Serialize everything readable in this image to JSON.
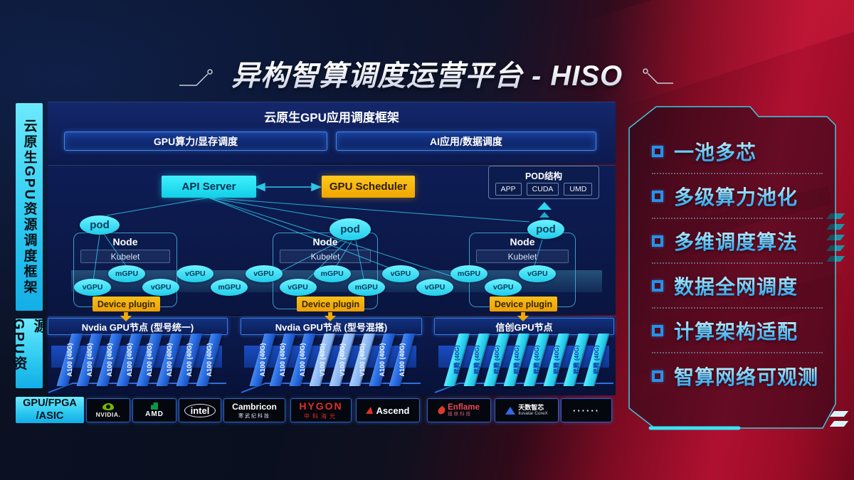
{
  "page": {
    "title": "异构智算调度运营平台 - HISO"
  },
  "sidebar": {
    "scheduling_label": "云原生GPU资源调度框架",
    "resource_label": "GPU资源",
    "hardware_label": "GPU/FPGA\n/ASIC"
  },
  "framework": {
    "title": "云原生GPU应用调度框架",
    "compute_bar": "GPU算力/显存调度",
    "ai_bar": "AI应用/数据调度"
  },
  "cluster": {
    "api_server": "API Server",
    "gpu_scheduler": "GPU Scheduler",
    "pod_struct": {
      "title": "POD结构",
      "items": [
        "APP",
        "CUDA",
        "UMD"
      ]
    },
    "pod_label": "pod",
    "node_label": "Node",
    "kubelet_label": "Kubelet",
    "device_plugin_label": "Device plugin",
    "band": [
      "vGPU",
      "mGPU",
      "vGPU",
      "vGPU",
      "mGPU",
      "vGPU",
      "vGPU",
      "mGPU",
      "mGPU",
      "vGPU",
      "vGPU",
      "mGPU",
      "vGPU",
      "vGPU"
    ]
  },
  "gpu_groups": [
    {
      "title": "Nvdia GPU节点 (型号统一)",
      "cards": [
        {
          "label": "A100 (40G)",
          "type": "a100"
        },
        {
          "label": "A100 (40G)",
          "type": "a100"
        },
        {
          "label": "A100 (40G)",
          "type": "a100"
        },
        {
          "label": "A100 (40G)",
          "type": "a100"
        },
        {
          "label": "A100 (40G)",
          "type": "a100"
        },
        {
          "label": "A100 (40G)",
          "type": "a100"
        },
        {
          "label": "A100 (40G)",
          "type": "a100"
        },
        {
          "label": "A100 (40G)",
          "type": "a100"
        }
      ]
    },
    {
      "title": "Nvdia GPU节点 (型号混搭)",
      "cards": [
        {
          "label": "A100 (40G)",
          "type": "a100"
        },
        {
          "label": "A100 (40G)",
          "type": "a100"
        },
        {
          "label": "A100 (40G)",
          "type": "a100"
        },
        {
          "label": "V100 (40G)",
          "type": "v100"
        },
        {
          "label": "V100 (40G)",
          "type": "v100"
        },
        {
          "label": "V100 (40G)",
          "type": "v100"
        },
        {
          "label": "A100 (40G)",
          "type": "a100"
        },
        {
          "label": "A100 (40G)",
          "type": "a100"
        }
      ]
    },
    {
      "title": "信创GPU节点",
      "cards": [
        {
          "label": "昇腾 (40G)",
          "type": "ascend"
        },
        {
          "label": "昇腾 (40G)",
          "type": "ascend"
        },
        {
          "label": "昇腾 (40G)",
          "type": "ascend"
        },
        {
          "label": "昇腾 (40G)",
          "type": "ascend"
        },
        {
          "label": "昇腾 (40G)",
          "type": "ascend"
        },
        {
          "label": "昇腾 (40G)",
          "type": "ascend"
        },
        {
          "label": "昇腾 (40G)",
          "type": "ascend"
        },
        {
          "label": "昇腾 (40G)",
          "type": "ascend"
        }
      ]
    }
  ],
  "vendors": [
    {
      "id": "nvidia",
      "text": "NVIDIA."
    },
    {
      "id": "amd",
      "text": "AMD"
    },
    {
      "id": "intel",
      "text": "intel"
    },
    {
      "id": "cambricon",
      "text": "Cambricon",
      "subtext": "寒武纪科技"
    },
    {
      "id": "hygon",
      "text": "HYGON",
      "subtext": "中科海光"
    },
    {
      "id": "ascend",
      "text": "Ascend"
    },
    {
      "id": "enflame",
      "text": "Enflame",
      "subtext": "燧原科技"
    },
    {
      "id": "iluvatar",
      "text": "天数智芯",
      "subtext": "Iluvatar CoreX"
    },
    {
      "id": "more",
      "text": "······"
    }
  ],
  "features": [
    "一池多芯",
    "多级算力池化",
    "多维调度算法",
    "数据全网调度",
    "计算架构适配",
    "智算网络可观测"
  ],
  "colors": {
    "accent_cyan": "#27e0f5",
    "accent_yellow": "#f6b80b",
    "card_blue": "#1a55cc",
    "nvidia_green": "#76b900",
    "hygon_red": "#e03028",
    "panel_red": "#a50e26"
  }
}
